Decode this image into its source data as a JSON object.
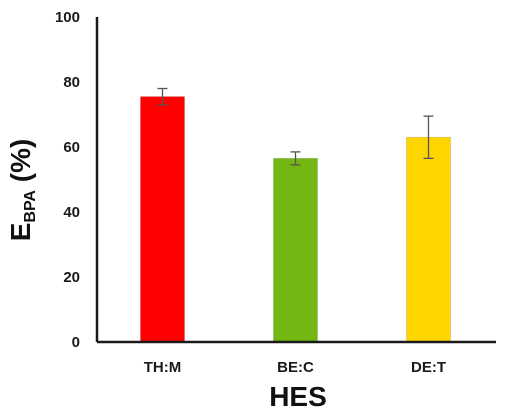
{
  "chart_data": {
    "type": "bar",
    "title": "",
    "xlabel": "HES",
    "ylabel": {
      "main": "E",
      "subscript": "BPA",
      "suffix": " (%)"
    },
    "categories": [
      "TH:M",
      "BE:C",
      "DE:T"
    ],
    "series": [
      {
        "values": [
          75.5,
          56.5,
          63.0
        ],
        "errors": [
          2.5,
          2.0,
          6.5
        ],
        "colors": [
          "#ff0000",
          "#73b812",
          "#ffd500"
        ]
      }
    ],
    "ylim": [
      0,
      100
    ],
    "yticks": [
      0,
      20,
      40,
      60,
      80,
      100
    ],
    "grid": false,
    "legend": "none"
  }
}
